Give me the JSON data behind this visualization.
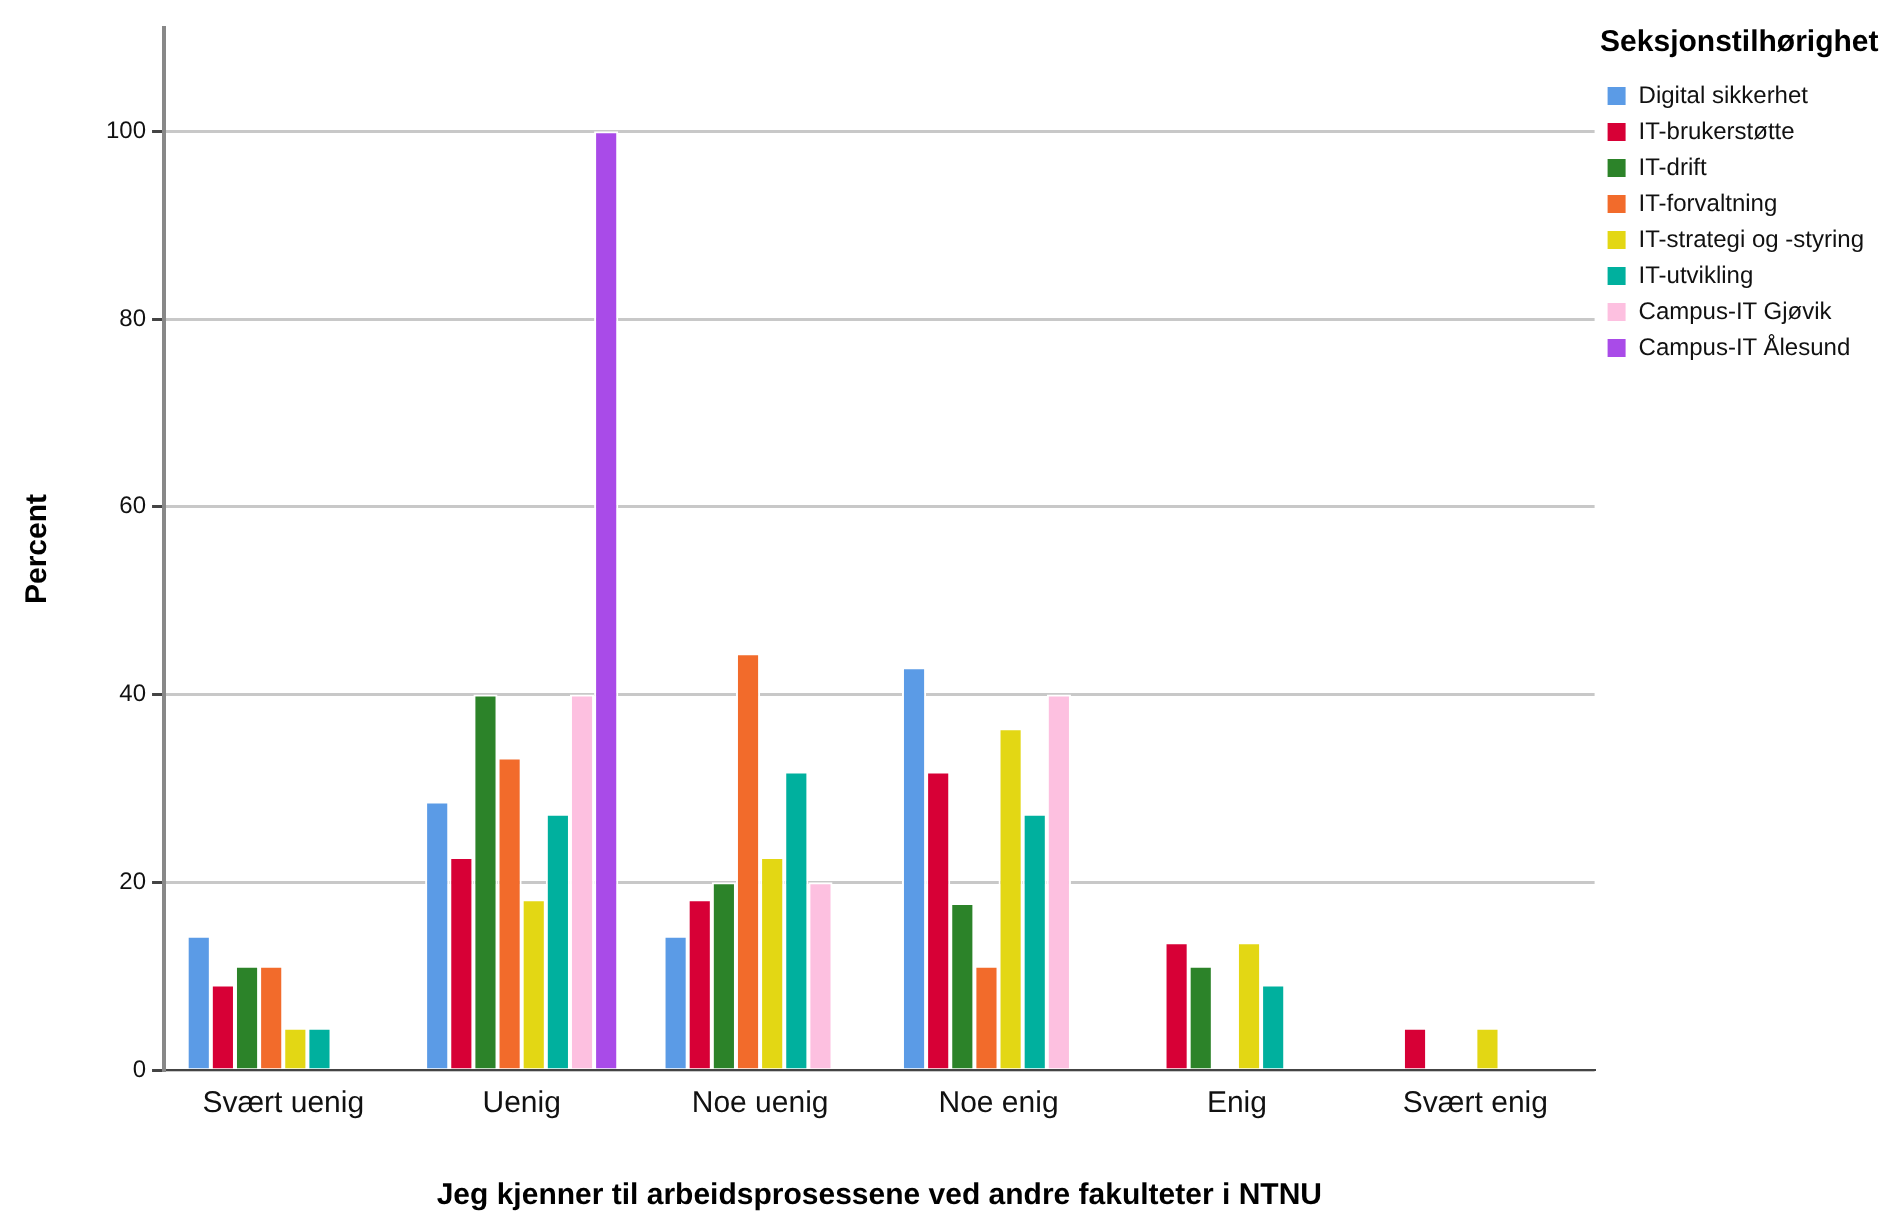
{
  "chart_data": {
    "type": "bar",
    "xlabel": "Jeg kjenner til arbeidsprosessene ved andre fakulteter i NTNU",
    "ylabel": "Percent",
    "legend_title": "Seksjonstilhørighet",
    "categories": [
      "Svært uenig",
      "Uenig",
      "Noe uenig",
      "Noe enig",
      "Enig",
      "Svært enig"
    ],
    "series": [
      {
        "name": "Digital sikkerhet",
        "color": "#5b9be6",
        "values": [
          14.3,
          28.6,
          14.3,
          42.9,
          null,
          null
        ]
      },
      {
        "name": "IT-brukerstøtte",
        "color": "#d70036",
        "values": [
          9.1,
          22.7,
          18.2,
          31.8,
          13.6,
          4.5
        ]
      },
      {
        "name": "IT-drift",
        "color": "#2c8329",
        "values": [
          11.1,
          40,
          20,
          17.8,
          11.1,
          null
        ]
      },
      {
        "name": "IT-forvaltning",
        "color": "#f26b2b",
        "values": [
          11.1,
          33.3,
          44.4,
          11.1,
          null,
          null
        ]
      },
      {
        "name": "IT-strategi og -styring",
        "color": "#e3d714",
        "values": [
          4.5,
          18.2,
          22.7,
          36.4,
          13.6,
          4.5
        ]
      },
      {
        "name": "IT-utvikling",
        "color": "#00b09e",
        "values": [
          4.5,
          27.3,
          31.8,
          27.3,
          9.1,
          null
        ]
      },
      {
        "name": "Campus-IT Gjøvik",
        "color": "#fdc0e0",
        "values": [
          null,
          40,
          20,
          40,
          null,
          null
        ]
      },
      {
        "name": "Campus-IT Ålesund",
        "color": "#a94be8",
        "values": [
          null,
          100,
          null,
          null,
          null,
          null
        ]
      }
    ],
    "ylim": [
      0,
      111
    ],
    "yticks": [
      0,
      20,
      40,
      60,
      80,
      100
    ],
    "grid": "y",
    "legend": "top right"
  }
}
